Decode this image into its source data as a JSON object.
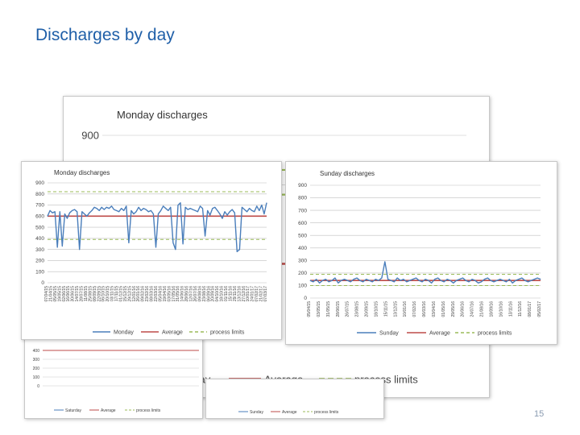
{
  "slide": {
    "title": "Discharges by day",
    "page_number": "15"
  },
  "colors": {
    "title": "#1f5fa8",
    "series": "#4a7ebb",
    "average": "#be4b48",
    "limits": "#9bbb59",
    "grid": "#bfbfbf"
  },
  "chart_data": [
    {
      "id": "monday-back",
      "type": "line",
      "title": "Monday discharges",
      "ylim": [
        0,
        900
      ],
      "yticks": [
        900,
        800
      ],
      "average": 640,
      "process_limits": [
        780,
        830
      ],
      "series_names": [
        "Monday",
        "Average",
        "process limits"
      ]
    },
    {
      "id": "monday",
      "type": "line",
      "title": "Monday discharges",
      "ylim": [
        0,
        900
      ],
      "yticks": [
        0,
        100,
        200,
        300,
        400,
        500,
        600,
        700,
        800,
        900
      ],
      "average": 600,
      "process_limits": [
        390,
        820
      ],
      "values": [
        600,
        650,
        630,
        640,
        320,
        640,
        330,
        620,
        580,
        630,
        650,
        660,
        640,
        300,
        640,
        620,
        600,
        630,
        650,
        680,
        670,
        650,
        680,
        660,
        680,
        670,
        690,
        660,
        650,
        640,
        670,
        650,
        690,
        360,
        650,
        620,
        640,
        680,
        650,
        670,
        660,
        640,
        650,
        620,
        320,
        620,
        650,
        690,
        670,
        650,
        680,
        360,
        300,
        700,
        720,
        350,
        680,
        660,
        670,
        660,
        650,
        640,
        690,
        670,
        420,
        650,
        610,
        670,
        680,
        650,
        620,
        580,
        640,
        610,
        640,
        660,
        630,
        280,
        300,
        680,
        660,
        640,
        670,
        650,
        640,
        690,
        650,
        700,
        620,
        720
      ],
      "x_labels": [
        "07/04/15",
        "21/04/15",
        "05/05/15",
        "19/05/15",
        "02/06/15",
        "16/06/15",
        "30/06/15",
        "14/07/15",
        "28/07/15",
        "11/08/15",
        "25/08/15",
        "08/09/15",
        "22/09/15",
        "06/10/15",
        "20/10/15",
        "03/11/15",
        "17/11/15",
        "01/12/15",
        "15/12/15",
        "29/12/15",
        "12/01/16",
        "26/01/16",
        "09/02/16",
        "23/02/16",
        "08/03/16",
        "22/03/16",
        "05/04/16",
        "19/04/16",
        "03/05/16",
        "17/05/16",
        "31/05/16",
        "14/06/16",
        "28/06/16",
        "12/07/16",
        "26/07/16",
        "09/08/16",
        "23/08/16",
        "06/09/16",
        "20/09/16",
        "04/10/16",
        "18/10/16",
        "01/11/16",
        "15/11/16",
        "29/11/16",
        "13/12/16",
        "27/12/16",
        "10/01/17",
        "24/01/17",
        "07/02/17",
        "21/02/17",
        "07/03/17"
      ],
      "series_names": [
        "Monday",
        "Average",
        "process limits"
      ]
    },
    {
      "id": "sunday",
      "type": "line",
      "title": "Sunday discharges",
      "ylim": [
        0,
        900
      ],
      "yticks": [
        0,
        100,
        200,
        300,
        400,
        500,
        600,
        700,
        800,
        900
      ],
      "average": 140,
      "process_limits": [
        100,
        190
      ],
      "values": [
        140,
        130,
        150,
        120,
        140,
        150,
        130,
        140,
        160,
        120,
        140,
        150,
        140,
        130,
        150,
        160,
        140,
        130,
        150,
        140,
        130,
        150,
        140,
        160,
        290,
        150,
        140,
        130,
        160,
        140,
        150,
        130,
        140,
        150,
        160,
        140,
        130,
        150,
        140,
        120,
        150,
        160,
        140,
        130,
        150,
        140,
        120,
        140,
        150,
        160,
        140,
        130,
        150,
        140,
        120,
        130,
        150,
        160,
        140,
        130,
        140,
        150,
        140,
        130,
        150,
        120,
        140,
        150,
        160,
        140,
        130,
        140,
        150,
        160,
        150
      ],
      "x_labels": [
        "05/04/15",
        "03/05/15",
        "31/05/15",
        "28/06/15",
        "26/07/15",
        "23/08/15",
        "20/09/15",
        "18/10/15",
        "15/11/15",
        "13/12/15",
        "10/01/16",
        "07/02/16",
        "06/03/16",
        "03/04/16",
        "01/05/16",
        "29/05/16",
        "26/06/16",
        "24/07/16",
        "21/08/16",
        "18/09/16",
        "16/10/16",
        "13/11/16",
        "11/12/16",
        "08/01/17",
        "05/02/17"
      ],
      "series_names": [
        "Sunday",
        "Average",
        "process limits"
      ]
    },
    {
      "id": "saturday-back",
      "type": "line",
      "yticks": [
        0,
        100,
        200,
        300,
        400
      ],
      "average": 400,
      "series_names": [
        "Saturday",
        "Average",
        "process limits"
      ]
    },
    {
      "id": "sunday-back",
      "type": "line",
      "series_names": [
        "Sunday",
        "Average",
        "process limits"
      ]
    }
  ]
}
